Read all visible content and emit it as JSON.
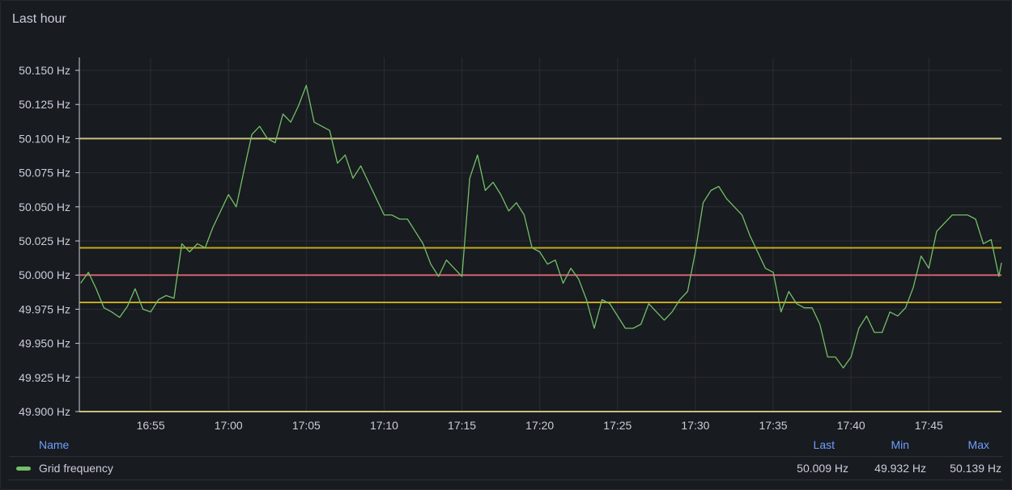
{
  "panel": {
    "title": "Last hour"
  },
  "legend": {
    "headers": {
      "name": "Name",
      "last": "Last",
      "min": "Min",
      "max": "Max"
    },
    "rows": [
      {
        "name": "Grid frequency",
        "last": "50.009 Hz",
        "min": "49.932 Hz",
        "max": "50.139 Hz",
        "color": "#73bf69"
      }
    ]
  },
  "chart_data": {
    "type": "line",
    "title": "Last hour",
    "xlabel": "",
    "ylabel": "",
    "unit": "Hz",
    "ylim": [
      49.9,
      50.16
    ],
    "xlim": [
      "16:50:25",
      "17:49:40"
    ],
    "grid": true,
    "legend_position": "bottom",
    "y_ticks": [
      "50.150 Hz",
      "50.125 Hz",
      "50.100 Hz",
      "50.075 Hz",
      "50.050 Hz",
      "50.025 Hz",
      "50.000 Hz",
      "49.975 Hz",
      "49.950 Hz",
      "49.925 Hz",
      "49.900 Hz"
    ],
    "y_tick_values": [
      50.15,
      50.125,
      50.1,
      50.075,
      50.05,
      50.025,
      50.0,
      49.975,
      49.95,
      49.925,
      49.9
    ],
    "x_ticks": [
      "16:55",
      "17:00",
      "17:05",
      "17:10",
      "17:15",
      "17:20",
      "17:25",
      "17:30",
      "17:35",
      "17:40",
      "17:45"
    ],
    "thresholds": [
      {
        "value": 50.1,
        "color": "#c8c07a"
      },
      {
        "value": 50.02,
        "color": "#c4a81e"
      },
      {
        "value": 50.0,
        "color": "#d4616c"
      },
      {
        "value": 49.98,
        "color": "#c4a81e"
      },
      {
        "value": 49.9,
        "color": "#c8c07a"
      }
    ],
    "series": [
      {
        "name": "Grid frequency",
        "color": "#73bf69",
        "x": [
          "16:50:30",
          "16:51:00",
          "16:51:30",
          "16:52:00",
          "16:52:30",
          "16:53:00",
          "16:53:30",
          "16:54:00",
          "16:54:30",
          "16:55:00",
          "16:55:30",
          "16:56:00",
          "16:56:30",
          "16:57:00",
          "16:57:30",
          "16:58:00",
          "16:58:30",
          "16:59:00",
          "16:59:30",
          "17:00:00",
          "17:00:30",
          "17:01:00",
          "17:01:30",
          "17:02:00",
          "17:02:30",
          "17:03:00",
          "17:03:30",
          "17:04:00",
          "17:04:30",
          "17:05:00",
          "17:05:30",
          "17:06:00",
          "17:06:30",
          "17:07:00",
          "17:07:30",
          "17:08:00",
          "17:08:30",
          "17:09:00",
          "17:09:30",
          "17:10:00",
          "17:10:30",
          "17:11:00",
          "17:11:30",
          "17:12:00",
          "17:12:30",
          "17:13:00",
          "17:13:30",
          "17:14:00",
          "17:14:30",
          "17:15:00",
          "17:15:30",
          "17:16:00",
          "17:16:30",
          "17:17:00",
          "17:17:30",
          "17:18:00",
          "17:18:30",
          "17:19:00",
          "17:19:30",
          "17:20:00",
          "17:20:30",
          "17:21:00",
          "17:21:30",
          "17:22:00",
          "17:22:30",
          "17:23:00",
          "17:23:30",
          "17:24:00",
          "17:24:30",
          "17:25:00",
          "17:25:30",
          "17:26:00",
          "17:26:30",
          "17:27:00",
          "17:27:30",
          "17:28:00",
          "17:28:30",
          "17:29:00",
          "17:29:30",
          "17:30:00",
          "17:30:30",
          "17:31:00",
          "17:31:30",
          "17:32:00",
          "17:32:30",
          "17:33:00",
          "17:33:30",
          "17:34:00",
          "17:34:30",
          "17:35:00",
          "17:35:30",
          "17:36:00",
          "17:36:30",
          "17:37:00",
          "17:37:30",
          "17:38:00",
          "17:38:30",
          "17:39:00",
          "17:39:30",
          "17:40:00",
          "17:40:30",
          "17:41:00",
          "17:41:30",
          "17:42:00",
          "17:42:30",
          "17:43:00",
          "17:43:30",
          "17:44:00",
          "17:44:30",
          "17:45:00",
          "17:45:30",
          "17:46:00",
          "17:46:30",
          "17:47:00",
          "17:47:30",
          "17:48:00",
          "17:48:30",
          "17:49:00",
          "17:49:30",
          "17:49:40"
        ],
        "values": [
          49.994,
          50.002,
          49.99,
          49.976,
          49.973,
          49.969,
          49.977,
          49.99,
          49.975,
          49.973,
          49.982,
          49.985,
          49.983,
          50.023,
          50.017,
          50.023,
          50.02,
          50.035,
          50.047,
          50.059,
          50.05,
          50.077,
          50.103,
          50.109,
          50.1,
          50.097,
          50.118,
          50.112,
          50.124,
          50.139,
          50.112,
          50.109,
          50.106,
          50.082,
          50.088,
          50.071,
          50.08,
          50.068,
          50.056,
          50.044,
          50.044,
          50.041,
          50.041,
          50.032,
          50.023,
          50.008,
          49.999,
          50.011,
          50.005,
          49.999,
          50.071,
          50.088,
          50.062,
          50.068,
          50.059,
          50.047,
          50.053,
          50.044,
          50.02,
          50.017,
          50.008,
          50.011,
          49.994,
          50.005,
          49.997,
          49.982,
          49.961,
          49.982,
          49.979,
          49.97,
          49.961,
          49.961,
          49.964,
          49.979,
          49.973,
          49.967,
          49.973,
          49.982,
          49.988,
          50.017,
          50.053,
          50.062,
          50.065,
          50.056,
          50.05,
          50.044,
          50.029,
          50.017,
          50.005,
          50.002,
          49.973,
          49.988,
          49.979,
          49.976,
          49.976,
          49.964,
          49.94,
          49.94,
          49.932,
          49.94,
          49.961,
          49.97,
          49.958,
          49.958,
          49.973,
          49.97,
          49.976,
          49.991,
          50.014,
          50.005,
          50.032,
          50.038,
          50.044,
          50.044,
          50.044,
          50.041,
          50.023,
          50.026,
          49.999,
          50.009
        ]
      }
    ]
  }
}
